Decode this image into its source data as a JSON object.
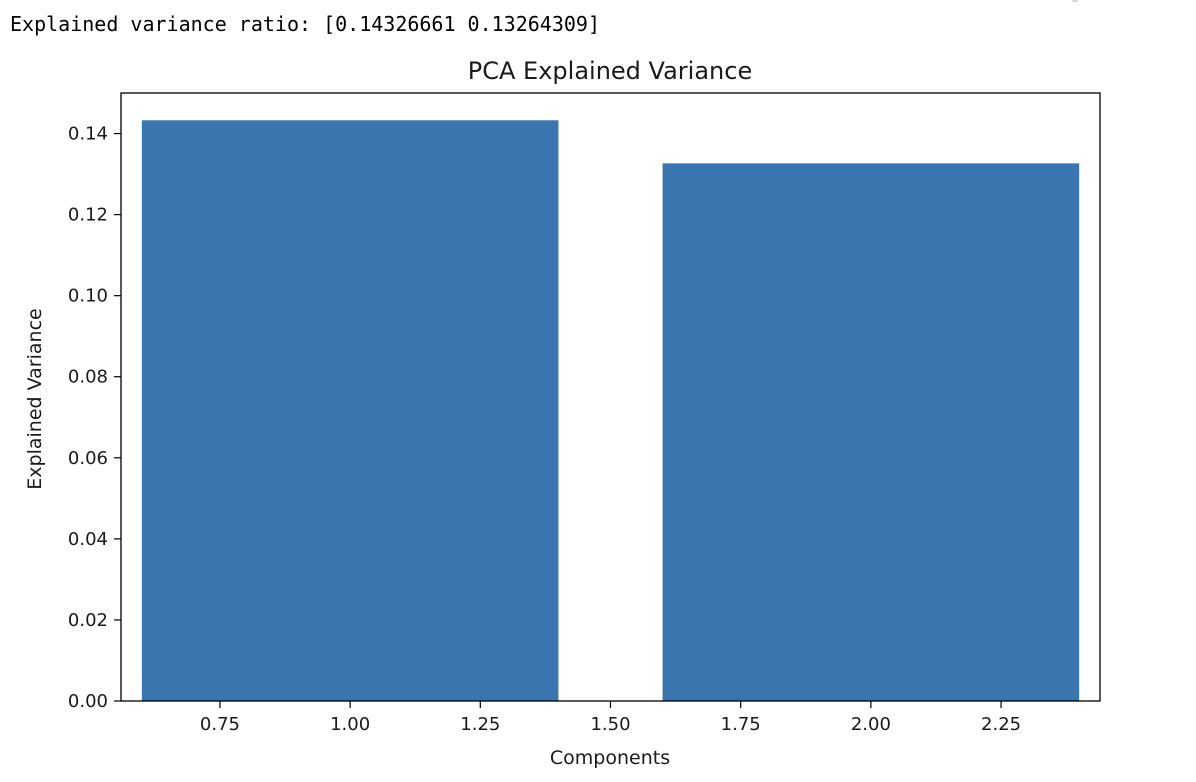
{
  "output": {
    "text": "Explained variance ratio: [0.14326661 0.13264309]"
  },
  "chart_data": {
    "type": "bar",
    "title": "PCA Explained Variance",
    "xlabel": "Components",
    "ylabel": "Explained Variance",
    "x": [
      1,
      2
    ],
    "values": [
      0.14326661,
      0.13264309
    ],
    "bar_width": 0.8,
    "xlim": [
      0.56,
      2.44
    ],
    "ylim": [
      0,
      0.15
    ],
    "xticks": [
      0.75,
      1.0,
      1.25,
      1.5,
      1.75,
      2.0,
      2.25
    ],
    "xtick_labels": [
      "0.75",
      "1.00",
      "1.25",
      "1.50",
      "1.75",
      "2.00",
      "2.25"
    ],
    "yticks": [
      0,
      0.02,
      0.04,
      0.06,
      0.08,
      0.1,
      0.12,
      0.14
    ],
    "ytick_labels": [
      "0.00",
      "0.02",
      "0.04",
      "0.06",
      "0.08",
      "0.10",
      "0.12",
      "0.14"
    ],
    "grid": false,
    "legend": "none",
    "bar_color": "#3b75af"
  }
}
